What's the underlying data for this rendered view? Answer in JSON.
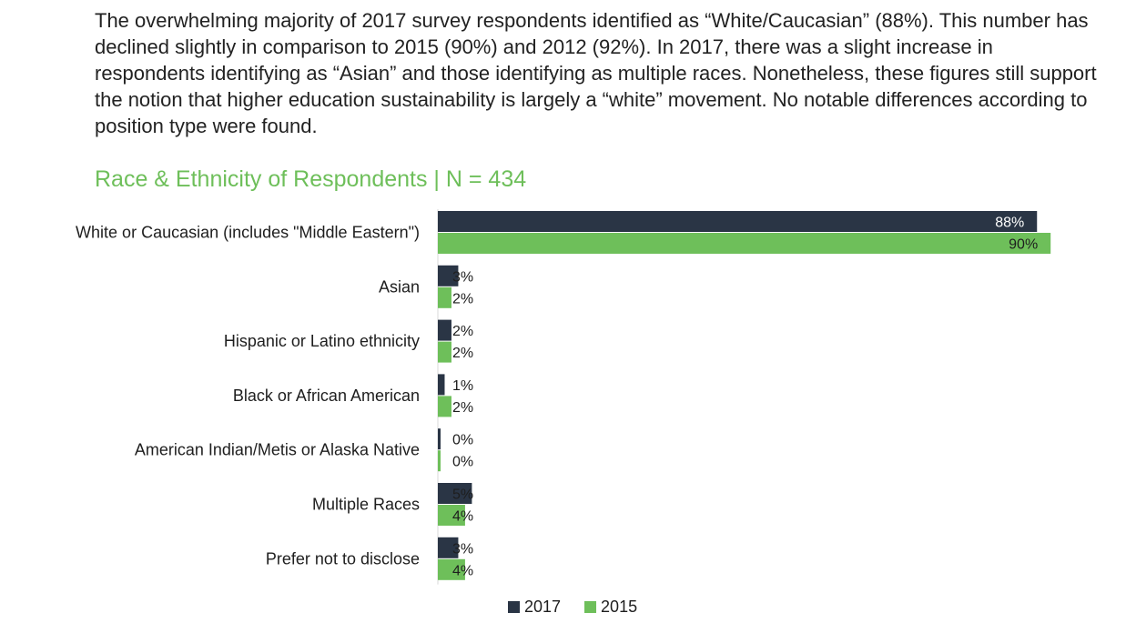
{
  "intro_text": "The overwhelming majority of 2017 survey respondents identified as “White/Caucasian” (88%). This number has declined slightly in comparison to 2015 (90%) and 2012 (92%). In 2017, there was a slight increase in respondents identifying as “Asian” and those identifying as multiple races. Nonetheless, these figures still support the notion that higher education sustainability is largely a “white” movement. No notable differences according to position type were found.",
  "colors": {
    "series_2017": "#2a3545",
    "series_2015": "#6ebf5a",
    "title": "#6ebf5a"
  },
  "chart_data": {
    "type": "bar",
    "orientation": "horizontal",
    "title": "Race & Ethnicity of Respondents | N = 434",
    "categories": [
      "White or Caucasian (includes \"Middle Eastern\")",
      "Asian",
      "Hispanic or Latino ethnicity",
      "Black or African American",
      "American Indian/Metis or Alaska Native",
      "Multiple Races",
      "Prefer not to disclose"
    ],
    "series": [
      {
        "name": "2017",
        "values": [
          88,
          3,
          2,
          1,
          0,
          5,
          3
        ],
        "labels": [
          "88%",
          "3%",
          "2%",
          "1%",
          "0%",
          "5%",
          "3%"
        ]
      },
      {
        "name": "2015",
        "values": [
          90,
          2,
          2,
          2,
          0,
          4,
          4
        ],
        "labels": [
          "90%",
          "2%",
          "2%",
          "2%",
          "0%",
          "4%",
          "4%"
        ]
      }
    ],
    "xlim": [
      0,
      100
    ],
    "grid": false,
    "legend": "bottom"
  }
}
